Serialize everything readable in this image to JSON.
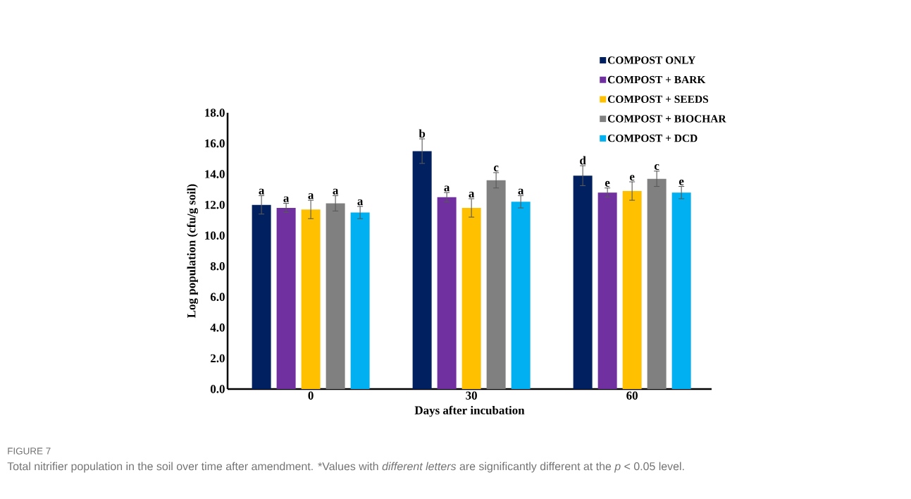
{
  "chart_data": {
    "type": "bar",
    "xlabel": "Days after incubation",
    "ylabel": "Log  population (cfu/g soil)",
    "categories": [
      "0",
      "30",
      "60"
    ],
    "ylim": [
      0,
      18
    ],
    "yticks": [
      {
        "value": 0,
        "label": "0.0"
      },
      {
        "value": 2,
        "label": "2.0"
      },
      {
        "value": 4,
        "label": "4.0"
      },
      {
        "value": 6,
        "label": "6.0"
      },
      {
        "value": 8,
        "label": "8.0"
      },
      {
        "value": 10,
        "label": "10.0"
      },
      {
        "value": 12,
        "label": "12.0"
      },
      {
        "value": 14,
        "label": "14.0"
      },
      {
        "value": 16,
        "label": "16.0"
      },
      {
        "value": 18,
        "label": "18.0"
      }
    ],
    "legend": "top right",
    "series": [
      {
        "name": "COMPOST ONLY",
        "color": "#002060",
        "values": [
          12.0,
          15.5,
          13.9
        ],
        "errors": [
          0.6,
          0.8,
          0.65
        ],
        "value_labels": [
          "a",
          "b",
          "d"
        ]
      },
      {
        "name": "COMPOST + BARK",
        "color": "#7030a0",
        "values": [
          11.8,
          12.5,
          12.8
        ],
        "errors": [
          0.3,
          0.3,
          0.3
        ],
        "value_labels": [
          "a",
          "a",
          "e"
        ]
      },
      {
        "name": "COMPOST + SEEDS",
        "color": "#ffc000",
        "values": [
          11.7,
          11.8,
          12.9
        ],
        "errors": [
          0.6,
          0.6,
          0.6
        ],
        "value_labels": [
          "a",
          "a",
          "e"
        ]
      },
      {
        "name": "COMPOST + BIOCHAR",
        "color": "#808080",
        "values": [
          12.1,
          13.6,
          13.7
        ],
        "errors": [
          0.5,
          0.5,
          0.5
        ],
        "value_labels": [
          "a",
          "c",
          "c"
        ]
      },
      {
        "name": "COMPOST + DCD",
        "color": "#00b0f0",
        "values": [
          11.5,
          12.2,
          12.8
        ],
        "errors": [
          0.4,
          0.4,
          0.4
        ],
        "value_labels": [
          "a",
          "a",
          "e"
        ]
      }
    ],
    "annotations": [
      "FIGURE 7",
      "Total nitrifier population in the soil over time after amendment. *Values with *different letters* are significantly different at the *p* < 0.05 level."
    ]
  }
}
